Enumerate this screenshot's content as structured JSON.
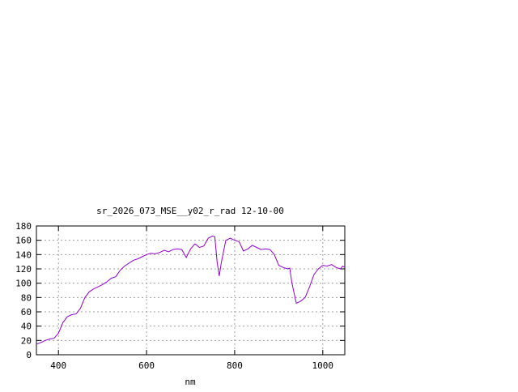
{
  "chart_data": {
    "type": "line",
    "title": "sr_2026_073_MSE__y02_r_rad 12-10-00",
    "xlabel": "nm",
    "ylabel": "",
    "xlim": [
      350,
      1050
    ],
    "ylim": [
      0,
      180
    ],
    "xticks": [
      400,
      600,
      800,
      1000
    ],
    "yticks": [
      0,
      20,
      40,
      60,
      80,
      100,
      120,
      140,
      160,
      180
    ],
    "grid": true,
    "line_color": "#9400d3",
    "series": [
      {
        "x": [
          350,
          360,
          370,
          380,
          390,
          400,
          410,
          420,
          430,
          440,
          450,
          460,
          470,
          480,
          490,
          500,
          510,
          520,
          530,
          540,
          550,
          560,
          570,
          580,
          590,
          600,
          610,
          620,
          630,
          640,
          650,
          660,
          670,
          680,
          690,
          700,
          710,
          720,
          730,
          740,
          750,
          755,
          760,
          765,
          770,
          780,
          790,
          800,
          810,
          820,
          830,
          840,
          850,
          860,
          870,
          880,
          890,
          900,
          910,
          920,
          925,
          930,
          940,
          950,
          960,
          970,
          980,
          990,
          1000,
          1010,
          1020,
          1030,
          1040,
          1045,
          1050
        ],
        "y": [
          15,
          17,
          20,
          22,
          23,
          30,
          45,
          53,
          56,
          57,
          65,
          80,
          88,
          92,
          95,
          98,
          102,
          107,
          109,
          118,
          124,
          128,
          132,
          134,
          137,
          140,
          142,
          141,
          143,
          146,
          144,
          147,
          148,
          147,
          136,
          148,
          155,
          150,
          152,
          163,
          166,
          165,
          130,
          110,
          130,
          160,
          163,
          160,
          158,
          145,
          148,
          153,
          150,
          147,
          148,
          147,
          140,
          125,
          122,
          120,
          121,
          100,
          72,
          75,
          80,
          95,
          112,
          120,
          125,
          124,
          126,
          122,
          120,
          124,
          122
        ]
      }
    ]
  }
}
